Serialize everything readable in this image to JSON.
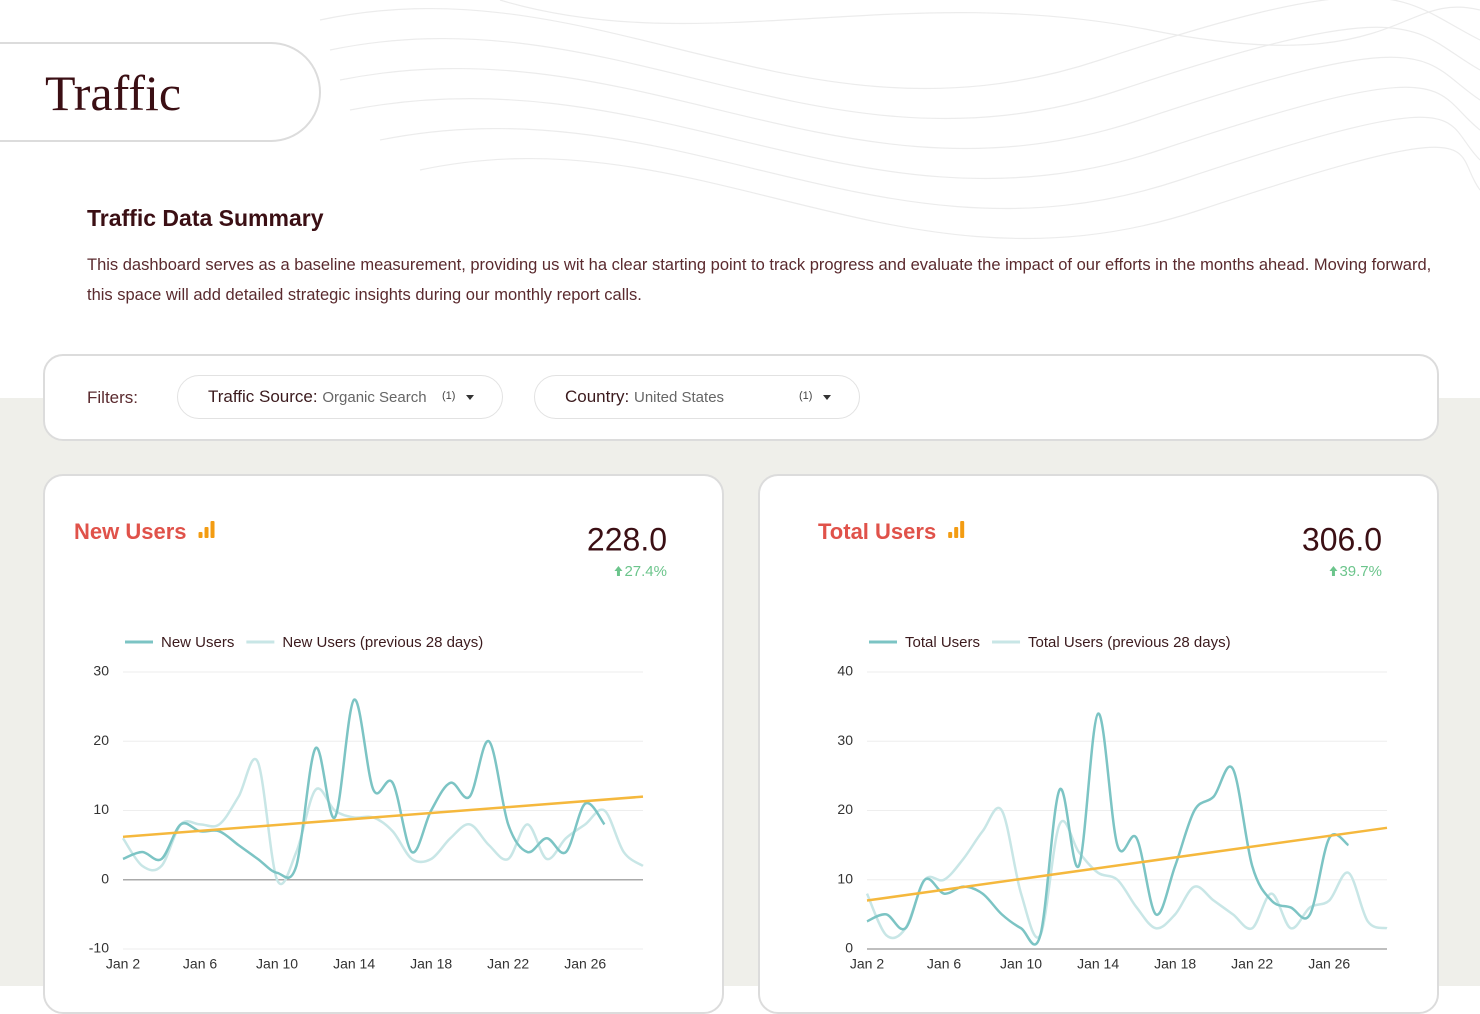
{
  "header": {
    "title": "Traffic"
  },
  "summary": {
    "title": "Traffic Data Summary",
    "text": "This dashboard serves as a baseline measurement, providing us wit ha clear starting point to track progress and evaluate the impact of our efforts in the months ahead. Moving forward, this space will add detailed strategic insights during our monthly report calls."
  },
  "filters": {
    "label": "Filters:",
    "items": [
      {
        "name": "Traffic Source:",
        "value": "Organic Search",
        "count": "(1)"
      },
      {
        "name": "Country:",
        "value": "United States",
        "count": "(1)"
      }
    ]
  },
  "chart_data": [
    {
      "type": "line",
      "title": "New Users",
      "metric": "228.0",
      "change": "27.4%",
      "categories": [
        "Jan 2",
        null,
        null,
        null,
        "Jan 6",
        null,
        null,
        null,
        "Jan 10",
        null,
        null,
        null,
        "Jan 14",
        null,
        null,
        null,
        "Jan 18",
        null,
        null,
        null,
        "Jan 22",
        null,
        null,
        null,
        "Jan 26",
        null,
        null,
        null
      ],
      "series": [
        {
          "name": "New Users",
          "color": "#7cc4c4",
          "values": [
            3,
            4,
            3,
            8,
            7,
            7,
            5,
            3,
            1,
            2,
            19,
            9,
            26,
            13,
            14,
            4,
            10,
            14,
            12,
            20,
            8,
            4,
            6,
            4,
            11,
            8,
            null,
            null
          ]
        },
        {
          "name": "New Users (previous 28 days)",
          "color": "#c8e6e6",
          "values": [
            6,
            2,
            2,
            8,
            8,
            8,
            12,
            17,
            0,
            4,
            13,
            10,
            9,
            9,
            7,
            3,
            3,
            6,
            8,
            5,
            3,
            8,
            3,
            6,
            8,
            10,
            4,
            2
          ]
        }
      ],
      "trend": {
        "color": "#f5b83d",
        "values": [
          6.2,
          12
        ]
      },
      "ylim": [
        -10,
        30
      ],
      "yticks": [
        -10,
        0,
        10,
        20,
        30
      ],
      "grid": true
    },
    {
      "type": "line",
      "title": "Total Users",
      "metric": "306.0",
      "change": "39.7%",
      "categories": [
        "Jan 2",
        null,
        null,
        null,
        "Jan 6",
        null,
        null,
        null,
        "Jan 10",
        null,
        null,
        null,
        "Jan 14",
        null,
        null,
        null,
        "Jan 18",
        null,
        null,
        null,
        "Jan 22",
        null,
        null,
        null,
        "Jan 26",
        null,
        null,
        null
      ],
      "series": [
        {
          "name": "Total Users",
          "color": "#7cc4c4",
          "values": [
            4,
            5,
            3,
            10,
            8,
            9,
            8,
            5,
            3,
            2,
            23,
            12,
            34,
            15,
            16,
            5,
            12,
            20,
            22,
            26,
            12,
            7,
            6,
            5,
            16,
            15,
            null,
            null
          ]
        },
        {
          "name": "Total Users (previous 28 days)",
          "color": "#c8e6e6",
          "values": [
            8,
            2,
            3,
            10,
            10,
            13,
            17,
            20,
            8,
            2,
            18,
            14,
            11,
            10,
            6,
            3,
            5,
            9,
            7,
            5,
            3,
            8,
            3,
            6,
            7,
            11,
            4,
            3
          ]
        }
      ],
      "trend": {
        "color": "#f5b83d",
        "values": [
          7,
          17.5
        ]
      },
      "ylim": [
        0,
        40
      ],
      "yticks": [
        0,
        10,
        20,
        30,
        40
      ],
      "grid": true
    }
  ]
}
